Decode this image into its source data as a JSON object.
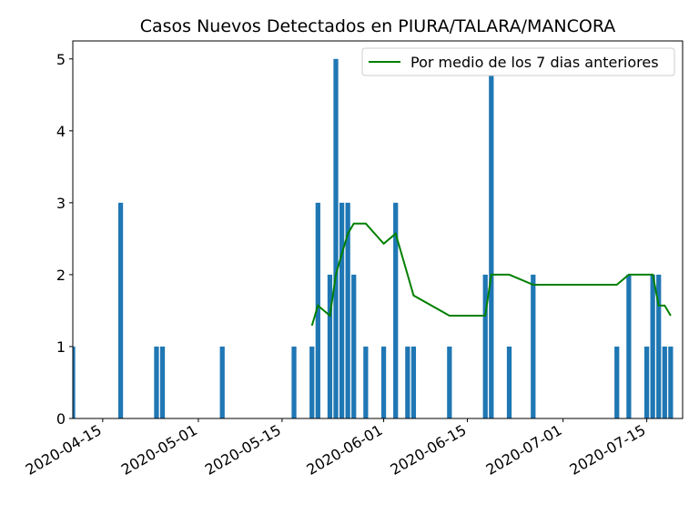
{
  "chart_data": {
    "type": "bar",
    "title": "Casos Nuevos Detectados en PIURA/TALARA/MANCORA",
    "xlabel": "",
    "ylabel": "",
    "x_axis": {
      "type": "date",
      "range": [
        "2020-04-10",
        "2020-07-21"
      ]
    },
    "ylim": [
      0,
      5.25
    ],
    "y_ticks": [
      0,
      1,
      2,
      3,
      4,
      5
    ],
    "x_ticks": [
      "2020-04-15",
      "2020-05-01",
      "2020-05-15",
      "2020-06-01",
      "2020-06-15",
      "2020-07-01",
      "2020-07-15"
    ],
    "grid": false,
    "legend": {
      "placement": "top-right",
      "entries": [
        "Por medio de los 7 dias anteriores"
      ]
    },
    "series": [
      {
        "kind": "bar",
        "color": "#1f77b4",
        "points": [
          {
            "x": "2020-04-10",
            "y": 1
          },
          {
            "x": "2020-04-18",
            "y": 3
          },
          {
            "x": "2020-04-24",
            "y": 1
          },
          {
            "x": "2020-04-25",
            "y": 1
          },
          {
            "x": "2020-05-05",
            "y": 1
          },
          {
            "x": "2020-05-17",
            "y": 1
          },
          {
            "x": "2020-05-20",
            "y": 1
          },
          {
            "x": "2020-05-21",
            "y": 3
          },
          {
            "x": "2020-05-23",
            "y": 2
          },
          {
            "x": "2020-05-24",
            "y": 5
          },
          {
            "x": "2020-05-25",
            "y": 3
          },
          {
            "x": "2020-05-26",
            "y": 3
          },
          {
            "x": "2020-05-27",
            "y": 2
          },
          {
            "x": "2020-05-29",
            "y": 1
          },
          {
            "x": "2020-06-01",
            "y": 1
          },
          {
            "x": "2020-06-03",
            "y": 3
          },
          {
            "x": "2020-06-05",
            "y": 1
          },
          {
            "x": "2020-06-06",
            "y": 1
          },
          {
            "x": "2020-06-12",
            "y": 1
          },
          {
            "x": "2020-06-18",
            "y": 2
          },
          {
            "x": "2020-06-19",
            "y": 5
          },
          {
            "x": "2020-06-22",
            "y": 1
          },
          {
            "x": "2020-06-26",
            "y": 2
          },
          {
            "x": "2020-07-10",
            "y": 1
          },
          {
            "x": "2020-07-12",
            "y": 2
          },
          {
            "x": "2020-07-15",
            "y": 1
          },
          {
            "x": "2020-07-16",
            "y": 2
          },
          {
            "x": "2020-07-17",
            "y": 2
          },
          {
            "x": "2020-07-18",
            "y": 1
          },
          {
            "x": "2020-07-19",
            "y": 1
          }
        ]
      },
      {
        "kind": "line",
        "name": "Por medio de los 7 dias anteriores",
        "color": "#008000",
        "points": [
          {
            "x": "2020-05-20",
            "y": 1.29
          },
          {
            "x": "2020-05-21",
            "y": 1.57
          },
          {
            "x": "2020-05-23",
            "y": 1.43
          },
          {
            "x": "2020-05-24",
            "y": 2.0
          },
          {
            "x": "2020-05-25",
            "y": 2.29
          },
          {
            "x": "2020-05-26",
            "y": 2.57
          },
          {
            "x": "2020-05-27",
            "y": 2.71
          },
          {
            "x": "2020-05-29",
            "y": 2.71
          },
          {
            "x": "2020-06-01",
            "y": 2.43
          },
          {
            "x": "2020-06-03",
            "y": 2.57
          },
          {
            "x": "2020-06-05",
            "y": 2.0
          },
          {
            "x": "2020-06-06",
            "y": 1.71
          },
          {
            "x": "2020-06-12",
            "y": 1.43
          },
          {
            "x": "2020-06-18",
            "y": 1.43
          },
          {
            "x": "2020-06-19",
            "y": 2.0
          },
          {
            "x": "2020-06-22",
            "y": 2.0
          },
          {
            "x": "2020-06-26",
            "y": 1.86
          },
          {
            "x": "2020-07-10",
            "y": 1.86
          },
          {
            "x": "2020-07-12",
            "y": 2.0
          },
          {
            "x": "2020-07-15",
            "y": 2.0
          },
          {
            "x": "2020-07-16",
            "y": 2.0
          },
          {
            "x": "2020-07-17",
            "y": 1.57
          },
          {
            "x": "2020-07-18",
            "y": 1.57
          },
          {
            "x": "2020-07-19",
            "y": 1.43
          }
        ]
      }
    ]
  }
}
